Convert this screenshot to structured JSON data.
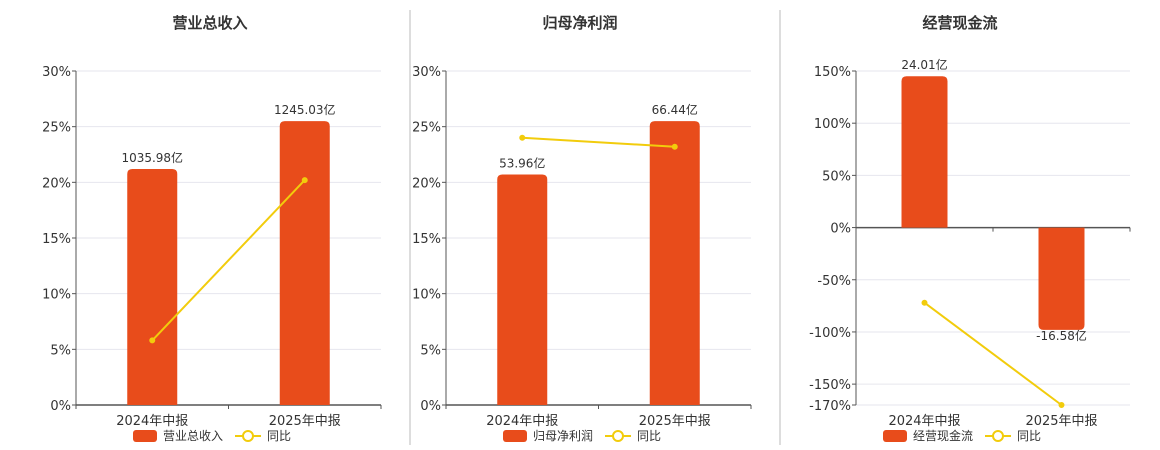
{
  "colors": {
    "bar": "#E84C1B",
    "line": "#F2CC0C",
    "grid": "#E6E6EE",
    "axis": "#555555",
    "divider": "#BBBBBB"
  },
  "chart_data": [
    {
      "type": "bar",
      "title": "营业总收入",
      "categories": [
        "2024年中报",
        "2025年中报"
      ],
      "series": [
        {
          "name": "营业总收入",
          "type": "bar",
          "values": [
            21.2,
            25.5
          ],
          "labels": [
            "1035.98亿",
            "1245.03亿"
          ]
        },
        {
          "name": "同比",
          "type": "line",
          "values": [
            5.8,
            20.2
          ]
        }
      ],
      "ylim": [
        0,
        30
      ],
      "yticks": [
        "0%",
        "5%",
        "10%",
        "15%",
        "20%",
        "25%",
        "30%"
      ],
      "ytick_values": [
        0,
        5,
        10,
        15,
        20,
        25,
        30
      ],
      "grid": true,
      "legend": "bottom"
    },
    {
      "type": "bar",
      "title": "归母净利润",
      "categories": [
        "2024年中报",
        "2025年中报"
      ],
      "series": [
        {
          "name": "归母净利润",
          "type": "bar",
          "values": [
            20.7,
            25.5
          ],
          "labels": [
            "53.96亿",
            "66.44亿"
          ]
        },
        {
          "name": "同比",
          "type": "line",
          "values": [
            24.0,
            23.2
          ]
        }
      ],
      "ylim": [
        0,
        30
      ],
      "yticks": [
        "0%",
        "5%",
        "10%",
        "15%",
        "20%",
        "25%",
        "30%"
      ],
      "ytick_values": [
        0,
        5,
        10,
        15,
        20,
        25,
        30
      ],
      "grid": true,
      "legend": "bottom"
    },
    {
      "type": "bar",
      "title": "经营现金流",
      "categories": [
        "2024年中报",
        "2025年中报"
      ],
      "series": [
        {
          "name": "经营现金流",
          "type": "bar",
          "values": [
            145,
            -98
          ],
          "labels": [
            "24.01亿",
            "-16.58亿"
          ]
        },
        {
          "name": "同比",
          "type": "line",
          "values": [
            -72,
            -170
          ]
        }
      ],
      "ylim": [
        -170,
        150
      ],
      "yticks": [
        "150%",
        "100%",
        "50%",
        "0%",
        "-50%",
        "-100%",
        "-150%",
        "-170%"
      ],
      "ytick_values": [
        150,
        100,
        50,
        0,
        -50,
        -100,
        -150,
        -170
      ],
      "grid": true,
      "legend": "bottom"
    }
  ]
}
